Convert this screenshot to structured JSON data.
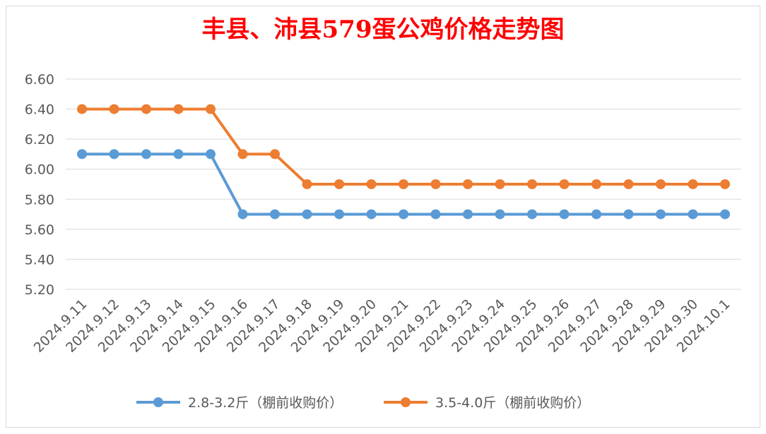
{
  "chart_data": {
    "type": "line",
    "title": "丰县、沛县579蛋公鸡价格走势图",
    "xlabel": "",
    "ylabel": "",
    "categories": [
      "2024.9.11",
      "2024.9.12",
      "2024.9.13",
      "2024.9.14",
      "2024.9.15",
      "2024.9.16",
      "2024.9.17",
      "2024.9.18",
      "2024.9.19",
      "2024.9.20",
      "2024.9.21",
      "2024.9.22",
      "2024.9.23",
      "2024.9.24",
      "2024.9.25",
      "2024.9.26",
      "2024.9.27",
      "2024.9.28",
      "2024.9.29",
      "2024.9.30",
      "2024.10.1"
    ],
    "series": [
      {
        "name": "2.8-3.2斤（棚前收购价）",
        "color": "#5b9bd5",
        "values": [
          6.1,
          6.1,
          6.1,
          6.1,
          6.1,
          5.7,
          5.7,
          5.7,
          5.7,
          5.7,
          5.7,
          5.7,
          5.7,
          5.7,
          5.7,
          5.7,
          5.7,
          5.7,
          5.7,
          5.7,
          5.7
        ]
      },
      {
        "name": "3.5-4.0斤（棚前收购价）",
        "color": "#ed7d31",
        "values": [
          6.4,
          6.4,
          6.4,
          6.4,
          6.4,
          6.1,
          6.1,
          5.9,
          5.9,
          5.9,
          5.9,
          5.9,
          5.9,
          5.9,
          5.9,
          5.9,
          5.9,
          5.9,
          5.9,
          5.9,
          5.9
        ]
      }
    ],
    "ylim": [
      5.2,
      6.6
    ],
    "yticks": [
      "6.60",
      "6.40",
      "6.20",
      "6.00",
      "5.80",
      "5.60",
      "5.40",
      "5.20"
    ],
    "grid": true,
    "legend_position": "bottom",
    "title_color": "#ff0000",
    "gridline_color": "#d9d9d9"
  }
}
